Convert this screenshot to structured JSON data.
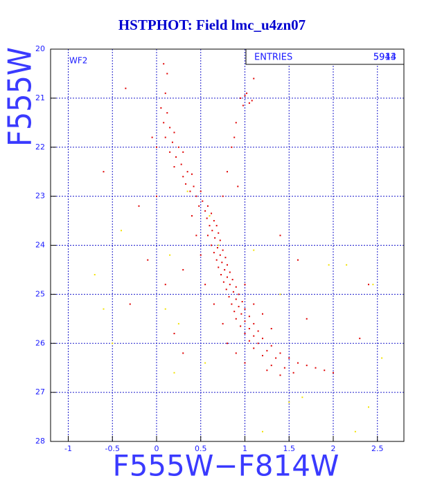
{
  "chart_data": {
    "type": "scatter",
    "title": "HSTPHOT: Field lmc_u4zn07",
    "xlabel": "F555W−F814W",
    "ylabel": "F555W",
    "annotation": "WF2",
    "stats": {
      "label": "ENTRIES",
      "values": [
        5913,
        5944
      ]
    },
    "xlim": [
      -1.2,
      2.8
    ],
    "ylim": [
      28,
      20
    ],
    "xticks": [
      -1,
      -0.5,
      0,
      0.5,
      1,
      1.5,
      2,
      2.5
    ],
    "yticks": [
      20,
      21,
      22,
      23,
      24,
      25,
      26,
      27,
      28
    ],
    "grid": true,
    "series": [
      {
        "color": "#e00000",
        "x": [
          0.08,
          0.12,
          0.1,
          0.05,
          0.12,
          0.08,
          0.15,
          0.1,
          0.2,
          0.18,
          0.25,
          0.15,
          0.22,
          0.3,
          0.28,
          0.2,
          0.35,
          0.3,
          0.4,
          0.33,
          0.42,
          0.38,
          0.5,
          0.45,
          0.52,
          0.48,
          0.58,
          0.55,
          0.62,
          0.57,
          0.65,
          0.6,
          0.68,
          0.63,
          0.7,
          0.58,
          0.66,
          0.72,
          0.62,
          0.69,
          0.75,
          0.65,
          0.72,
          0.78,
          0.68,
          0.74,
          0.8,
          0.7,
          0.77,
          0.83,
          0.73,
          0.8,
          0.86,
          0.76,
          0.83,
          0.9,
          0.79,
          0.87,
          0.93,
          0.82,
          0.9,
          0.97,
          0.85,
          0.93,
          1.0,
          0.88,
          0.96,
          1.05,
          0.9,
          1.0,
          1.1,
          0.95,
          1.05,
          1.15,
          1.0,
          1.1,
          1.2,
          1.05,
          1.15,
          1.3,
          1.1,
          1.25,
          1.4,
          1.2,
          1.35,
          1.5,
          1.6,
          1.3,
          1.45,
          1.7,
          1.25,
          1.55,
          1.8,
          1.4,
          1.9,
          1.0,
          0.9,
          0.8,
          0.75,
          0.65,
          0.55,
          0.5,
          0.45,
          0.4,
          1.2,
          1.3,
          1.1,
          1.0,
          0.95,
          1.0,
          1.05,
          0.98,
          1.08,
          1.02,
          1.1,
          0.9,
          0.85,
          0.8,
          0.88,
          0.92,
          0.75,
          -0.35,
          -0.6,
          -0.2,
          0.0,
          -0.1,
          0.1,
          -0.3,
          0.2,
          0.3,
          2.3,
          2.4,
          1.6,
          1.4,
          0.0,
          -0.05,
          0.3,
          2.0,
          1.7
        ],
        "y": [
          20.3,
          20.5,
          20.9,
          21.2,
          21.3,
          21.5,
          21.6,
          21.8,
          21.7,
          21.9,
          22.0,
          22.1,
          22.2,
          22.1,
          22.35,
          22.4,
          22.5,
          22.6,
          22.55,
          22.75,
          22.8,
          22.9,
          22.9,
          23.0,
          23.1,
          23.2,
          23.2,
          23.3,
          23.35,
          23.45,
          23.5,
          23.6,
          23.6,
          23.7,
          23.75,
          23.8,
          23.85,
          23.9,
          24.0,
          24.05,
          24.1,
          24.15,
          24.2,
          24.25,
          24.3,
          24.35,
          24.4,
          24.45,
          24.5,
          24.55,
          24.6,
          24.65,
          24.7,
          24.75,
          24.8,
          24.85,
          24.9,
          24.95,
          25.0,
          25.05,
          25.1,
          25.15,
          25.2,
          25.25,
          25.3,
          25.35,
          25.4,
          25.45,
          25.5,
          25.55,
          25.6,
          25.65,
          25.7,
          25.75,
          25.8,
          25.85,
          25.9,
          25.95,
          26.0,
          26.05,
          26.1,
          26.15,
          26.2,
          26.25,
          26.3,
          26.3,
          26.4,
          26.45,
          26.5,
          26.45,
          26.55,
          26.6,
          26.5,
          26.65,
          26.55,
          26.4,
          26.2,
          26.0,
          25.6,
          25.2,
          24.8,
          24.2,
          23.8,
          23.4,
          25.4,
          25.7,
          25.2,
          24.8,
          21.0,
          20.95,
          21.1,
          21.15,
          21.05,
          20.9,
          20.6,
          21.5,
          22.0,
          22.5,
          21.8,
          22.8,
          23.0,
          20.8,
          22.5,
          23.2,
          23.0,
          24.3,
          24.8,
          25.2,
          25.8,
          26.2,
          25.9,
          24.8,
          24.3,
          23.8,
          22.0,
          21.8,
          24.5,
          26.6,
          25.5
        ]
      },
      {
        "color": "#f2e200",
        "x": [
          -0.7,
          -0.4,
          0.1,
          -0.6,
          0.2,
          0.7,
          1.5,
          1.65,
          2.25,
          2.4,
          2.15,
          2.45,
          1.95,
          1.4,
          0.6,
          1.1,
          2.55,
          0.35,
          0.25,
          -0.5,
          1.2,
          0.15,
          0.55
        ],
        "y": [
          24.6,
          23.7,
          25.3,
          25.3,
          26.6,
          24.0,
          27.2,
          27.1,
          27.8,
          27.3,
          24.4,
          24.8,
          24.4,
          25.0,
          23.4,
          24.1,
          26.3,
          22.9,
          25.6,
          26.0,
          27.8,
          24.2,
          26.4
        ]
      }
    ]
  }
}
